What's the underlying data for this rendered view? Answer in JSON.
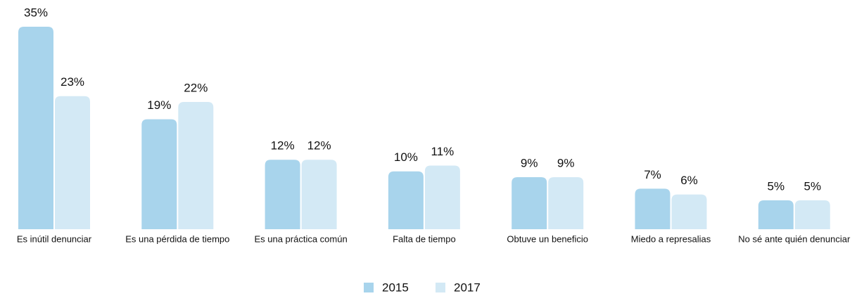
{
  "chart_data": {
    "type": "bar",
    "categories": [
      "Es inútil denunciar",
      "Es una pérdida de tiempo",
      "Es una práctica común",
      "Falta de tiempo",
      "Obtuve un beneficio",
      "Miedo a represalias",
      "No sé ante quién denunciar"
    ],
    "series": [
      {
        "name": "2015",
        "color": "#a8d4ec",
        "values": [
          35,
          19,
          12,
          10,
          9,
          7,
          5
        ],
        "value_labels": [
          "35%",
          "19%",
          "12%",
          "10%",
          "9%",
          "7%",
          "5%"
        ]
      },
      {
        "name": "2017",
        "color": "#d3e9f5",
        "values": [
          23,
          22,
          12,
          11,
          9,
          6,
          5
        ],
        "value_labels": [
          "23%",
          "22%",
          "12%",
          "11%",
          "9%",
          "6%",
          "5%"
        ]
      }
    ],
    "legend": "bottom"
  }
}
